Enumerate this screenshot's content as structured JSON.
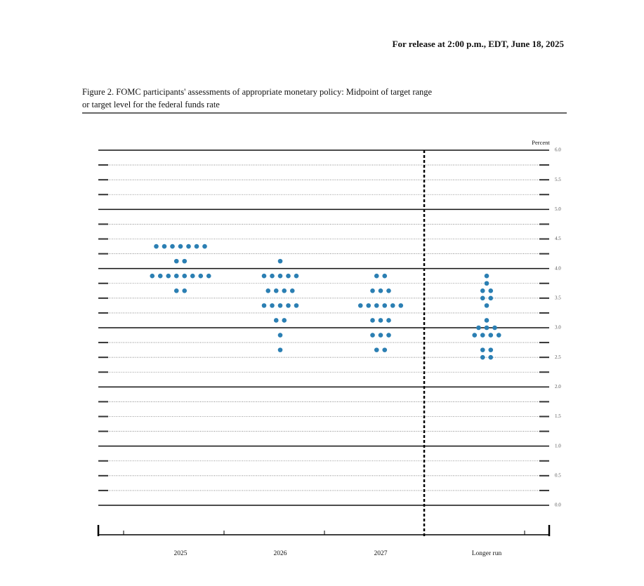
{
  "header": {
    "release": "For release at 2:00 p.m., EDT, June 18, 2025"
  },
  "chart_data": {
    "type": "dot",
    "title_line1": "Figure 2.  FOMC participants' assessments of appropriate monetary policy:  Midpoint of target range",
    "title_line2": "or target level for the federal funds rate",
    "y_label": "Percent",
    "color": "#2b7fb3",
    "categories": [
      "2025",
      "2026",
      "2027",
      "Longer run"
    ],
    "ylim": [
      0,
      6
    ],
    "yticks": [
      {
        "value": 0,
        "label": "0.0"
      },
      0.5,
      {
        "value": 1,
        "label": "1.0"
      },
      1.5,
      {
        "value": 2,
        "label": "2.0"
      },
      2.5,
      {
        "value": 3,
        "label": "3.0"
      },
      3.5,
      {
        "value": 4,
        "label": "4.0"
      },
      4.5,
      {
        "value": 5,
        "label": "5.0"
      },
      5.5,
      {
        "value": 6,
        "label": "6.0"
      }
    ],
    "dots": [
      [
        {
          "rate": 4.375,
          "count": 7
        },
        {
          "rate": 4.125,
          "count": 2
        },
        {
          "rate": 3.875,
          "count": 8
        },
        {
          "rate": 3.625,
          "count": 2
        }
      ],
      [
        {
          "rate": 4.125,
          "count": 1
        },
        {
          "rate": 3.875,
          "count": 5
        },
        {
          "rate": 3.625,
          "count": 4
        },
        {
          "rate": 3.375,
          "count": 5
        },
        {
          "rate": 3.125,
          "count": 2
        },
        {
          "rate": 2.875,
          "count": 1
        },
        {
          "rate": 2.625,
          "count": 1
        }
      ],
      [
        {
          "rate": 3.875,
          "count": 2
        },
        {
          "rate": 3.625,
          "count": 3
        },
        {
          "rate": 3.375,
          "count": 6
        },
        {
          "rate": 3.125,
          "count": 3
        },
        {
          "rate": 2.875,
          "count": 3
        },
        {
          "rate": 2.625,
          "count": 2
        }
      ],
      [
        {
          "rate": 3.875,
          "count": 1
        },
        {
          "rate": 3.75,
          "count": 1
        },
        {
          "rate": 3.625,
          "count": 2
        },
        {
          "rate": 3.5,
          "count": 2
        },
        {
          "rate": 3.375,
          "count": 1
        },
        {
          "rate": 3.125,
          "count": 1
        },
        {
          "rate": 3.0,
          "count": 3
        },
        {
          "rate": 2.875,
          "count": 4
        },
        {
          "rate": 2.625,
          "count": 2
        },
        {
          "rate": 2.5,
          "count": 2
        }
      ]
    ]
  }
}
